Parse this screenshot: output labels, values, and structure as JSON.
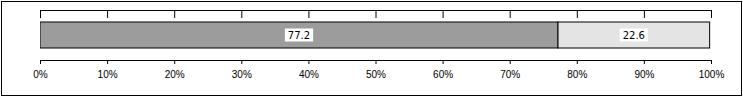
{
  "chart_data": {
    "type": "bar",
    "orientation": "horizontal",
    "stacked": true,
    "data_labels": true,
    "categories": [
      null
    ],
    "series": [
      {
        "color": "#9c9c9c",
        "values": [
          77.2
        ]
      },
      {
        "color": "#e4e4e4",
        "values": [
          22.6
        ]
      }
    ],
    "xlim": [
      0,
      100
    ],
    "xticks": [
      {
        "value": 0,
        "label": "0%"
      },
      {
        "value": 10,
        "label": "10%"
      },
      {
        "value": 20,
        "label": "20%"
      },
      {
        "value": 30,
        "label": "30%"
      },
      {
        "value": 40,
        "label": "40%"
      },
      {
        "value": 50,
        "label": "50%"
      },
      {
        "value": 60,
        "label": "60%"
      },
      {
        "value": 70,
        "label": "70%"
      },
      {
        "value": 80,
        "label": "80%"
      },
      {
        "value": 90,
        "label": "90%"
      },
      {
        "value": 100,
        "label": "100%"
      }
    ]
  }
}
